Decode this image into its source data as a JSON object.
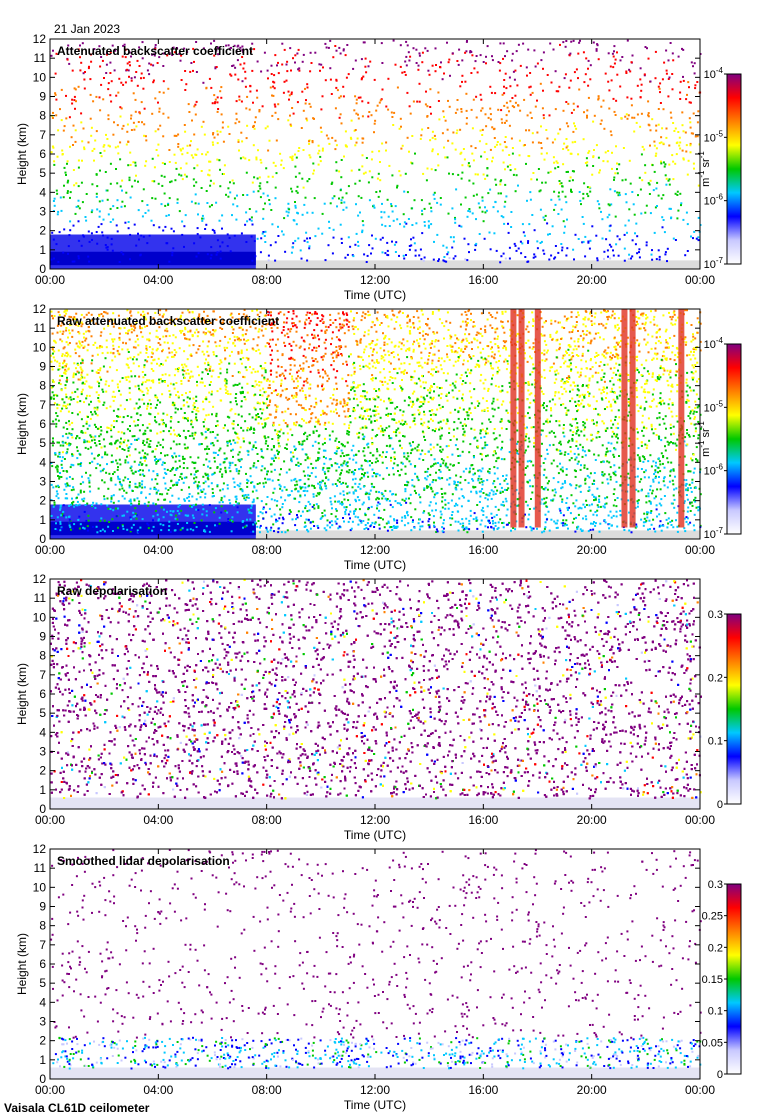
{
  "figure": {
    "date": "21 Jan 2023",
    "instrument": "Vaisala CL61D ceilometer"
  },
  "colors": {
    "background_fill": "#dcdcdc",
    "colormap": [
      "#ffffff",
      "#c8c8ff",
      "#0000ff",
      "#00c8ff",
      "#00c800",
      "#ffff00",
      "#ff8000",
      "#ff0000",
      "#800080"
    ]
  },
  "chart_data": [
    {
      "type": "heatmap",
      "title": "Attenuated backscatter coefficient",
      "xlabel": "Time (UTC)",
      "ylabel": "Height (km)",
      "x_ticks": [
        "00:00",
        "04:00",
        "08:00",
        "12:00",
        "16:00",
        "20:00",
        "00:00"
      ],
      "xlim_hours": [
        0,
        24
      ],
      "ylim": [
        0,
        12
      ],
      "y_ticks": [
        0,
        1,
        2,
        3,
        4,
        5,
        6,
        7,
        8,
        9,
        10,
        11,
        12
      ],
      "colorbar": {
        "scale": "log",
        "ticks": [
          "10-7",
          "10-6",
          "10-5",
          "10-4"
        ],
        "units": "m-1 sr-1",
        "range": [
          1e-07,
          0.0001
        ]
      },
      "grid": false
    },
    {
      "type": "heatmap",
      "title": "Raw attenuated backscatter coefficient",
      "xlabel": "Time (UTC)",
      "ylabel": "Height (km)",
      "x_ticks": [
        "00:00",
        "04:00",
        "08:00",
        "12:00",
        "16:00",
        "20:00",
        "00:00"
      ],
      "xlim_hours": [
        0,
        24
      ],
      "ylim": [
        0,
        12
      ],
      "y_ticks": [
        0,
        1,
        2,
        3,
        4,
        5,
        6,
        7,
        8,
        9,
        10,
        11,
        12
      ],
      "colorbar": {
        "scale": "log",
        "ticks": [
          "10-7",
          "10-6",
          "10-5",
          "10-4"
        ],
        "units": "m-1 sr-1",
        "range": [
          1e-07,
          0.0001
        ]
      },
      "grid": false
    },
    {
      "type": "heatmap",
      "title": "Raw depolarisation",
      "xlabel": "Time (UTC)",
      "ylabel": "Height (km)",
      "x_ticks": [
        "00:00",
        "04:00",
        "08:00",
        "12:00",
        "16:00",
        "20:00",
        "00:00"
      ],
      "xlim_hours": [
        0,
        24
      ],
      "ylim": [
        0,
        12
      ],
      "y_ticks": [
        0,
        1,
        2,
        3,
        4,
        5,
        6,
        7,
        8,
        9,
        10,
        11,
        12
      ],
      "colorbar": {
        "scale": "linear",
        "ticks": [
          "0",
          "0.1",
          "0.2",
          "0.3"
        ],
        "units": "",
        "range": [
          0,
          0.3
        ]
      },
      "grid": false
    },
    {
      "type": "heatmap",
      "title": "Smoothed lidar depolarisation",
      "xlabel": "Time (UTC)",
      "ylabel": "Height (km)",
      "x_ticks": [
        "00:00",
        "04:00",
        "08:00",
        "12:00",
        "16:00",
        "20:00",
        "00:00"
      ],
      "xlim_hours": [
        0,
        24
      ],
      "ylim": [
        0,
        12
      ],
      "y_ticks": [
        0,
        1,
        2,
        3,
        4,
        5,
        6,
        7,
        8,
        9,
        10,
        11,
        12
      ],
      "colorbar": {
        "scale": "linear",
        "ticks": [
          "0",
          "0.05",
          "0.1",
          "0.15",
          "0.2",
          "0.25",
          "0.3"
        ],
        "units": "",
        "range": [
          0,
          0.3
        ]
      },
      "grid": false
    }
  ]
}
